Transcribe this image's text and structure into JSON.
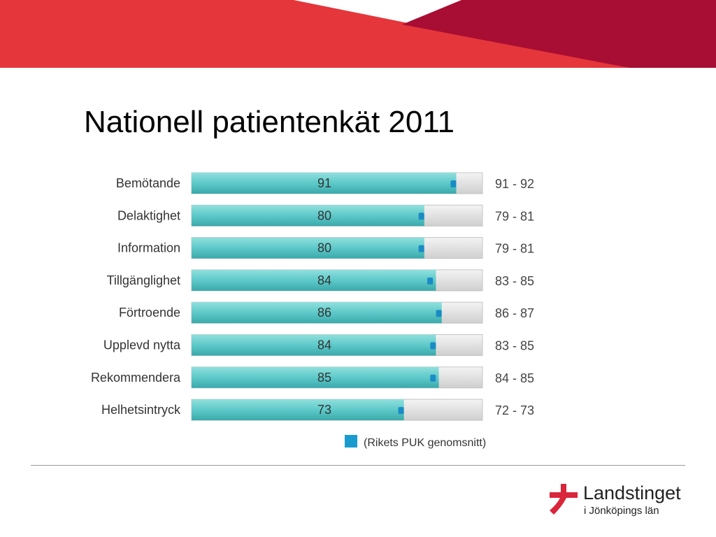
{
  "title": "Nationell patientenkät 2011",
  "colors": {
    "banner_left": "#e5363b",
    "banner_right": "#a80d33",
    "bar_fill": "#5ec9c9",
    "bar_track": "#d9d9d9",
    "marker": "#1a8bc4",
    "legend_swatch": "#1a9bd0",
    "logo_red": "#d9263a"
  },
  "chart_data": {
    "type": "bar",
    "orientation": "horizontal",
    "xlim": [
      0,
      100
    ],
    "grid": false,
    "categories": [
      "Bemötande",
      "Delaktighet",
      "Information",
      "Tillgänglighet",
      "Förtroende",
      "Upplevd nytta",
      "Rekommendera",
      "Helhetsintryck"
    ],
    "values": [
      91,
      80,
      80,
      84,
      86,
      84,
      85,
      73
    ],
    "ranges": [
      "91 - 92",
      "79 - 81",
      "79 - 81",
      "83 - 85",
      "86 - 87",
      "83 - 85",
      "84 - 85",
      "72 - 73"
    ],
    "national_average": [
      90,
      79,
      79,
      82,
      85,
      83,
      83,
      72
    ],
    "legend": {
      "label": "(Rikets PUK genomsnitt)",
      "position": "bottom"
    }
  },
  "logo": {
    "name": "Landstinget",
    "subtitle": "i Jönköpings län",
    "icon": "red-cross-ribbon-icon"
  }
}
